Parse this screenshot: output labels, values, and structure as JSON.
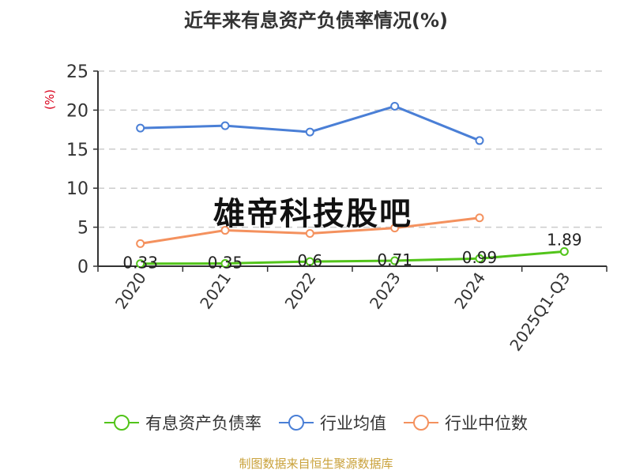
{
  "chart_data": {
    "type": "line",
    "title": "近年来有息资产负债率情况(%)",
    "ylabel": "(%)",
    "xlabel": "",
    "ylim": [
      0,
      25
    ],
    "yticks": [
      0,
      5,
      10,
      15,
      20,
      25
    ],
    "grid": "horizontal dashed",
    "legend_position": "bottom",
    "categories": [
      "2020",
      "2021",
      "2022",
      "2023",
      "2024",
      "2025Q1-Q3"
    ],
    "series": [
      {
        "name": "有息资产负债率",
        "color": "#52c41a",
        "values": [
          0.33,
          0.35,
          0.6,
          0.71,
          0.99,
          1.89
        ],
        "labels": [
          "0.33",
          "0.35",
          "0.6",
          "0.71",
          "0.99",
          "1.89"
        ]
      },
      {
        "name": "行业均值",
        "color": "#4a7fd6",
        "values": [
          17.7,
          18.0,
          17.2,
          20.5,
          16.1,
          null
        ]
      },
      {
        "name": "行业中位数",
        "color": "#f4915e",
        "values": [
          2.9,
          4.6,
          4.2,
          4.9,
          6.2,
          null
        ]
      }
    ]
  },
  "watermark": "雄帝科技股吧",
  "source": "制图数据来自恒生聚源数据库"
}
